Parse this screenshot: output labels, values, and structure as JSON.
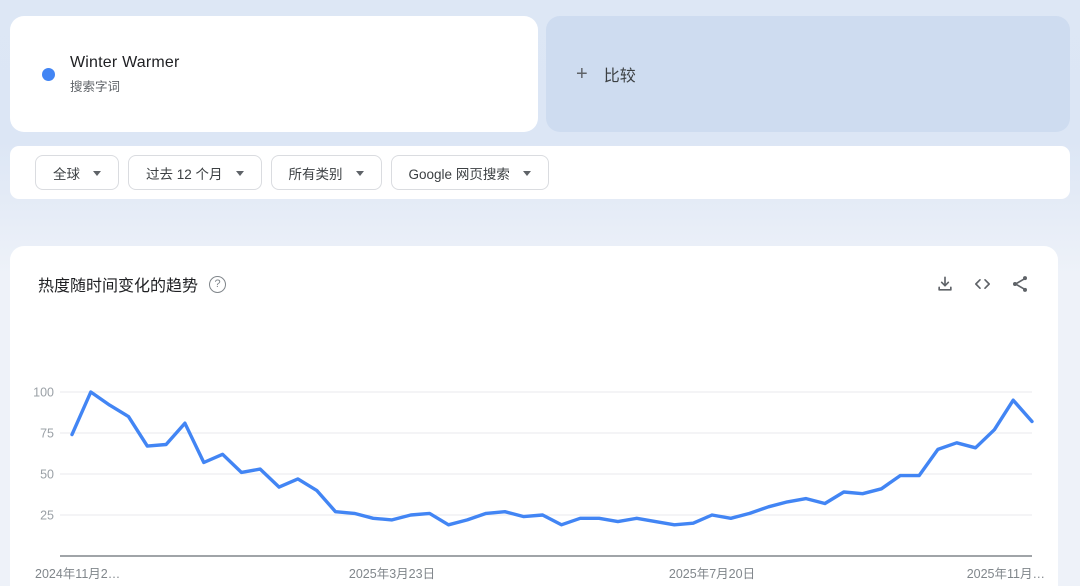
{
  "search_term_card": {
    "term": "Winter Warmer",
    "type_label": "搜索字词",
    "dot_color": "#4285f4"
  },
  "compare_card": {
    "plus_icon": "+",
    "label": "比较"
  },
  "filters": [
    {
      "label": "全球"
    },
    {
      "label": "过去 12 个月"
    },
    {
      "label": "所有类别"
    },
    {
      "label": "Google 网页搜索"
    }
  ],
  "chart_card": {
    "title": "热度随时间变化的趋势",
    "help_glyph": "?",
    "actions": [
      {
        "name": "download"
      },
      {
        "name": "embed"
      },
      {
        "name": "share"
      }
    ]
  },
  "chart_data": {
    "type": "line",
    "title": "热度随时间变化的趋势",
    "series": [
      {
        "name": "Winter Warmer",
        "color": "#4285f4",
        "values": [
          74,
          100,
          92,
          85,
          67,
          68,
          81,
          57,
          62,
          51,
          53,
          42,
          47,
          40,
          27,
          26,
          23,
          22,
          25,
          26,
          19,
          22,
          26,
          27,
          24,
          25,
          19,
          23,
          23,
          21,
          23,
          21,
          19,
          20,
          25,
          23,
          26,
          30,
          33,
          35,
          32,
          39,
          38,
          41,
          49,
          49,
          65,
          69,
          66,
          77,
          95,
          82
        ]
      }
    ],
    "x_tick_labels": [
      "2024年11月2…",
      "2025年3月23日",
      "2025年7月20日",
      "2025年11月…"
    ],
    "x_tick_indices": [
      0,
      17,
      34,
      51
    ],
    "y_ticks": [
      25,
      50,
      75,
      100
    ],
    "ylim": [
      0,
      100
    ],
    "grid": true,
    "legend": "none",
    "grid_color": "#e8eaed",
    "axis_color": "#80868b",
    "tick_color": "#9aa0a6"
  }
}
